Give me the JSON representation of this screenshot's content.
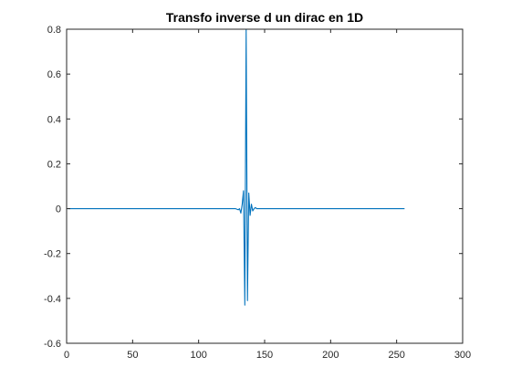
{
  "chart_data": {
    "type": "line",
    "title": "Transfo inverse d un dirac en 1D",
    "xlabel": "",
    "ylabel": "",
    "xlim": [
      0,
      300
    ],
    "ylim": [
      -0.6,
      0.8
    ],
    "xticks": [
      0,
      50,
      100,
      150,
      200,
      250,
      300
    ],
    "yticks": [
      -0.6,
      -0.4,
      -0.2,
      0,
      0.2,
      0.4,
      0.6,
      0.8
    ],
    "xtick_labels": [
      "0",
      "50",
      "100",
      "150",
      "200",
      "250",
      "300"
    ],
    "ytick_labels": [
      "-0.6",
      "-0.4",
      "-0.2",
      "0",
      "0.2",
      "0.4",
      "0.6",
      "0.8"
    ],
    "grid": false,
    "series": [
      {
        "color": "#0072BD",
        "x": [
          1,
          125,
          128,
          130,
          131,
          132,
          133,
          134,
          135,
          136,
          137,
          138,
          139,
          140,
          141,
          142,
          143,
          144,
          146,
          148,
          256
        ],
        "y": [
          0,
          0,
          0,
          -0.005,
          0,
          -0.02,
          0.02,
          0.08,
          -0.43,
          0.8,
          -0.41,
          0.07,
          -0.03,
          0.02,
          -0.01,
          0,
          0.005,
          0,
          0,
          0,
          0
        ]
      }
    ]
  }
}
